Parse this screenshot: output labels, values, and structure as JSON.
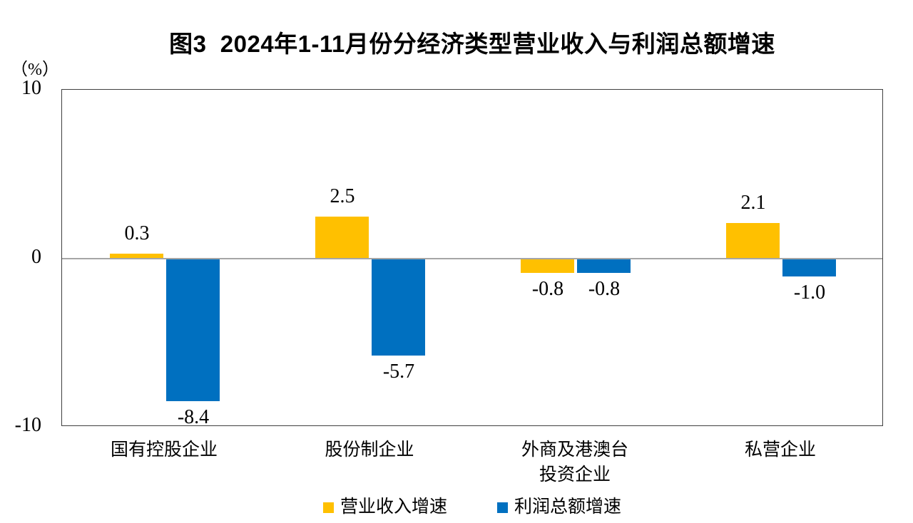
{
  "chart_data": {
    "type": "bar",
    "title": "图3  2024年1-11月份分经济类型营业收入与利润总额增速",
    "unit_label": "（%）",
    "categories": [
      "国有控股企业",
      "股份制企业",
      "外商及港澳台\n投资企业",
      "私营企业"
    ],
    "series": [
      {
        "name": "营业收入增速",
        "color": "#FFC000",
        "values": [
          0.3,
          2.5,
          -0.8,
          2.1
        ]
      },
      {
        "name": "利润总额增速",
        "color": "#0070C0",
        "values": [
          -8.4,
          -5.7,
          -0.8,
          -1.0
        ]
      }
    ],
    "value_labels": [
      [
        "0.3",
        "2.5",
        "-0.8",
        "2.1"
      ],
      [
        "-8.4",
        "-5.7",
        "-0.8",
        "-1.0"
      ]
    ],
    "ylim": [
      -10,
      10
    ],
    "yticks": [
      "10",
      "0",
      "-10"
    ],
    "ytick_values": [
      10,
      0,
      -10
    ],
    "grid": false,
    "legend_position": "bottom",
    "zero_line_color": "#A6A6A6",
    "axis_border_color": "#404040",
    "background_color": "#FFFFFF"
  }
}
